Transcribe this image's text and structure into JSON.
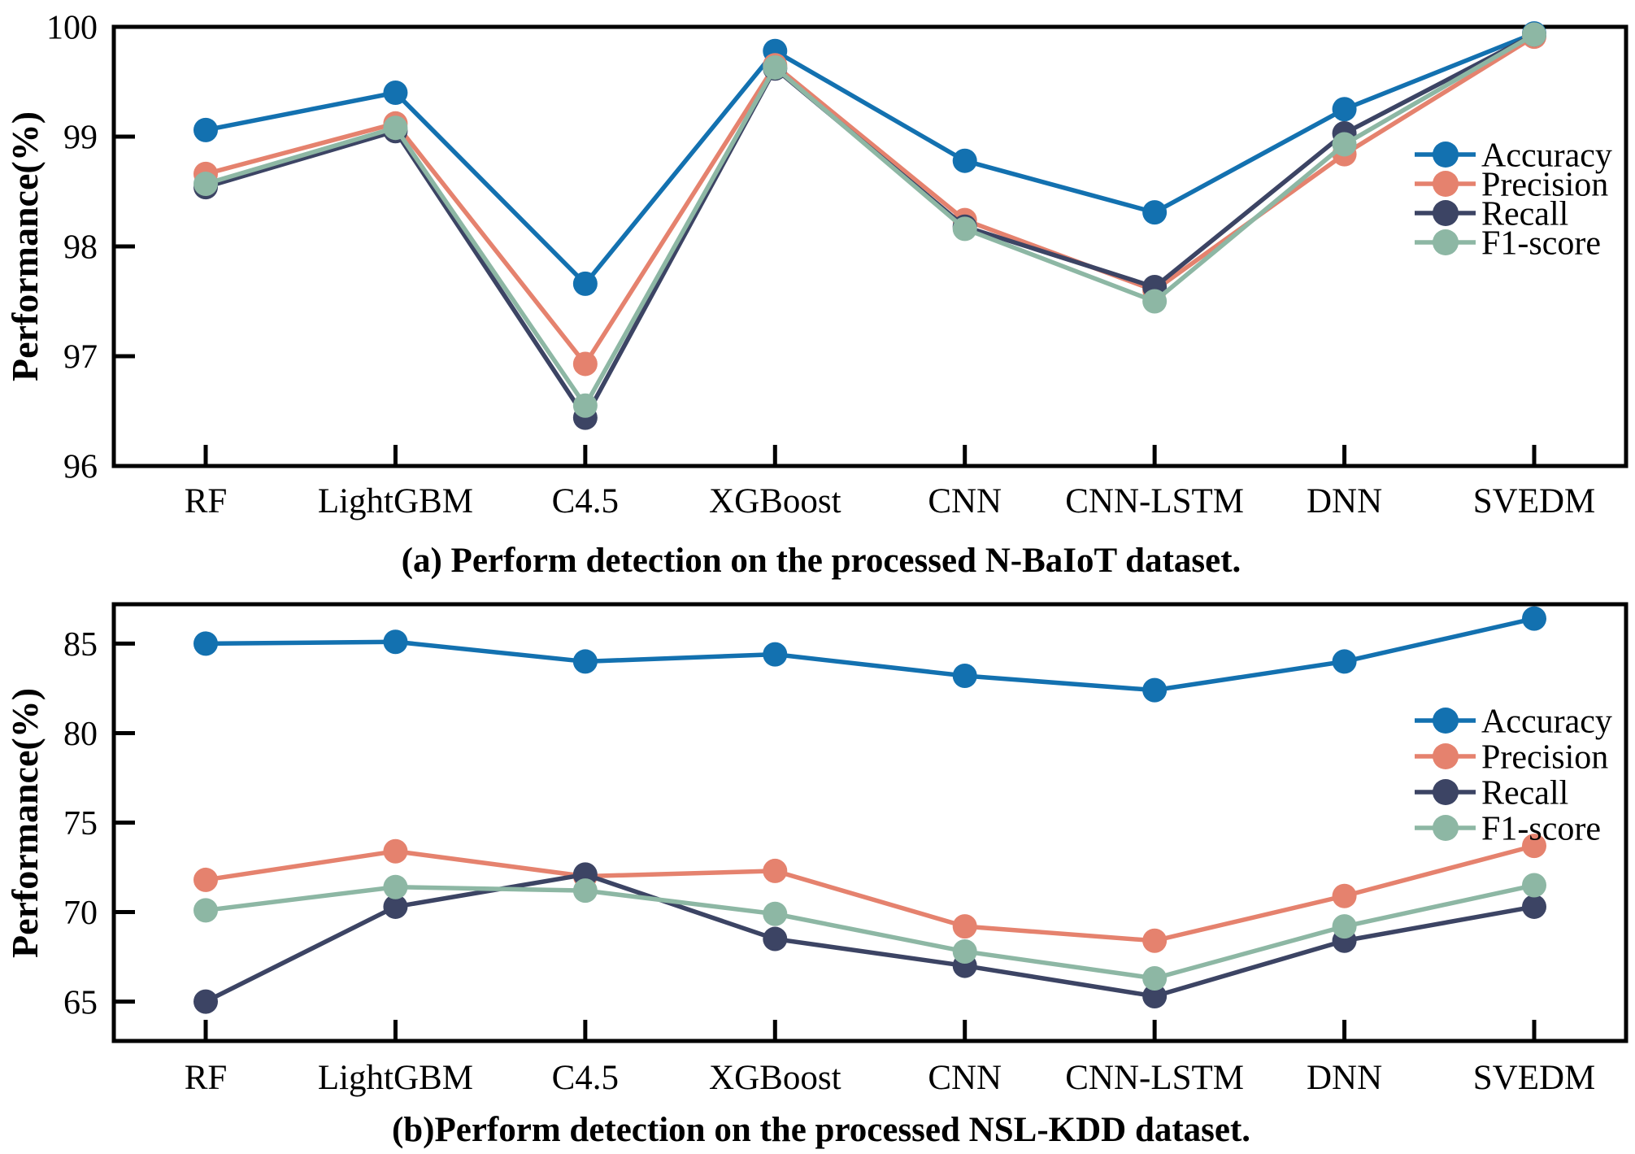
{
  "figure": {
    "background": "#ffffff",
    "axis_color": "#000000",
    "text_color": "#000000"
  },
  "chart_data": [
    {
      "id": "a",
      "type": "line",
      "title": "(a) Perform detection on the processed N-BaIoT dataset.",
      "ylabel": "Performance(%)",
      "xlabel": "",
      "categories": [
        "RF",
        "LightGBM",
        "C4.5",
        "XGBoost",
        "CNN",
        "CNN-LSTM",
        "DNN",
        "SVEDM"
      ],
      "ylim": [
        96,
        100
      ],
      "yticks": [
        96,
        97,
        98,
        99,
        100
      ],
      "grid": false,
      "legend_position": "upper-right-inside",
      "series": [
        {
          "name": "Accuracy",
          "color": "#1371b0",
          "values": [
            99.06,
            99.4,
            97.66,
            99.78,
            98.78,
            98.31,
            99.25,
            99.94
          ]
        },
        {
          "name": "Precision",
          "color": "#e5826e",
          "values": [
            98.66,
            99.12,
            96.93,
            99.65,
            98.24,
            97.6,
            98.84,
            99.91
          ]
        },
        {
          "name": "Recall",
          "color": "#3c4464",
          "values": [
            98.54,
            99.05,
            96.44,
            99.62,
            98.18,
            97.63,
            99.03,
            99.93
          ]
        },
        {
          "name": "F1-score",
          "color": "#8db7a4",
          "values": [
            98.57,
            99.08,
            96.55,
            99.63,
            98.16,
            97.5,
            98.93,
            99.93
          ]
        }
      ]
    },
    {
      "id": "b",
      "type": "line",
      "title": "(b)Perform detection on the processed NSL-KDD dataset.",
      "ylabel": "Performance(%)",
      "xlabel": "",
      "categories": [
        "RF",
        "LightGBM",
        "C4.5",
        "XGBoost",
        "CNN",
        "CNN-LSTM",
        "DNN",
        "SVEDM"
      ],
      "ylim": [
        62.8,
        87.2
      ],
      "yticks": [
        65,
        70,
        75,
        80,
        85
      ],
      "grid": false,
      "legend_position": "upper-right-inside",
      "series": [
        {
          "name": "Accuracy",
          "color": "#1371b0",
          "values": [
            85.0,
            85.1,
            84.0,
            84.4,
            83.2,
            82.4,
            84.0,
            86.4
          ]
        },
        {
          "name": "Precision",
          "color": "#e5826e",
          "values": [
            71.8,
            73.4,
            72.0,
            72.3,
            69.2,
            68.4,
            70.9,
            73.7
          ]
        },
        {
          "name": "Recall",
          "color": "#3c4464",
          "values": [
            65.0,
            70.3,
            72.1,
            68.5,
            67.0,
            65.3,
            68.4,
            70.3
          ]
        },
        {
          "name": "F1-score",
          "color": "#8db7a4",
          "values": [
            70.1,
            71.4,
            71.2,
            69.9,
            67.8,
            66.3,
            69.2,
            71.5
          ]
        }
      ]
    }
  ]
}
